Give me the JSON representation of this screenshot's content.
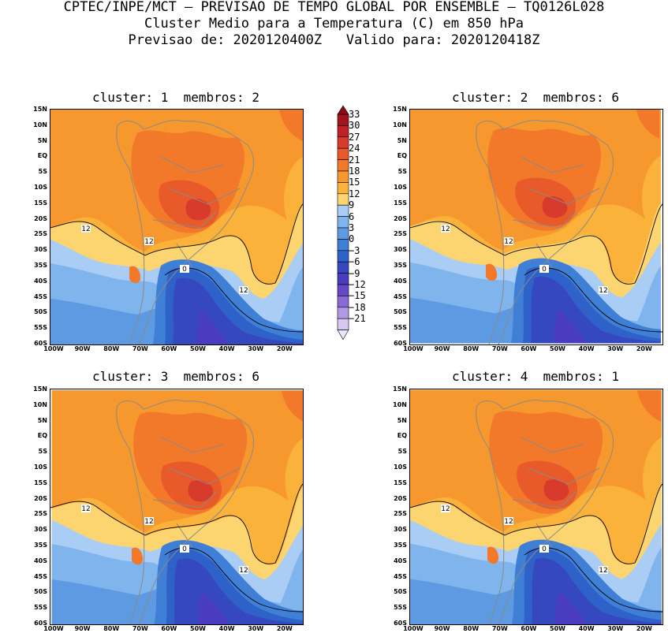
{
  "header": {
    "line1": "CPTEC/INPE/MCT – PREVISAO DE TEMPO GLOBAL POR ENSEMBLE – TQ0126L028",
    "line2": "Cluster Medio para a Temperatura (C) em 850 hPa",
    "line3": "Previsao de: 2020120400Z   Valido para: 2020120418Z"
  },
  "panels": [
    {
      "title": "cluster: 1  membros: 2",
      "contour_labels": [
        "12",
        "12",
        "12",
        "0"
      ]
    },
    {
      "title": "cluster: 2  membros: 6",
      "contour_labels": [
        "12",
        "12",
        "12",
        "0"
      ]
    },
    {
      "title": "cluster: 3  membros: 6",
      "contour_labels": [
        "12",
        "12",
        "12",
        "0"
      ]
    },
    {
      "title": "cluster: 4  membros: 1",
      "contour_labels": [
        "12",
        "12",
        "12",
        "0"
      ]
    }
  ],
  "lat_ticks": [
    "15N",
    "10N",
    "5N",
    "EQ",
    "5S",
    "10S",
    "15S",
    "20S",
    "25S",
    "30S",
    "35S",
    "40S",
    "45S",
    "50S",
    "55S",
    "60S"
  ],
  "lon_ticks": [
    "100W",
    "90W",
    "80W",
    "70W",
    "60W",
    "50W",
    "40W",
    "30W",
    "20W"
  ],
  "colorbar": {
    "labels": [
      "33",
      "30",
      "27",
      "24",
      "21",
      "18",
      "15",
      "12",
      "9",
      "6",
      "3",
      "0",
      "−3",
      "−6",
      "−9",
      "−12",
      "−15",
      "−18",
      "−21"
    ],
    "colors": [
      "#a0141e",
      "#c0202a",
      "#d83a2c",
      "#e85a2a",
      "#f2782a",
      "#f7982e",
      "#fab23a",
      "#fcd470",
      "#a9cdf5",
      "#7fb4ec",
      "#5d9ae2",
      "#3f7fd6",
      "#2f62c8",
      "#3548c0",
      "#4a3cc0",
      "#6448c8",
      "#8a6ad6",
      "#b09ae4",
      "#d6c8f0"
    ]
  }
}
